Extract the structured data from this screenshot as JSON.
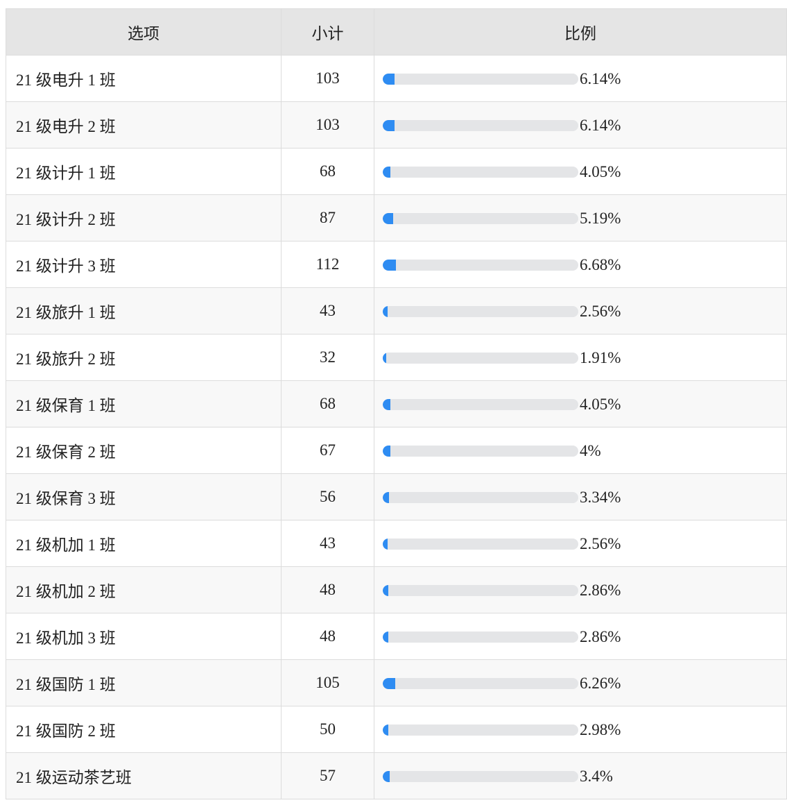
{
  "table": {
    "headers": [
      "选项",
      "小计",
      "比例"
    ],
    "rows": [
      {
        "option": "21 级电升 1 班",
        "count": "103",
        "ratio": 6.14,
        "ratio_label": "6.14%"
      },
      {
        "option": "21 级电升 2 班",
        "count": "103",
        "ratio": 6.14,
        "ratio_label": "6.14%"
      },
      {
        "option": "21 级计升 1 班",
        "count": "68",
        "ratio": 4.05,
        "ratio_label": "4.05%"
      },
      {
        "option": "21 级计升 2 班",
        "count": "87",
        "ratio": 5.19,
        "ratio_label": "5.19%"
      },
      {
        "option": "21 级计升 3 班",
        "count": "112",
        "ratio": 6.68,
        "ratio_label": "6.68%"
      },
      {
        "option": "21 级旅升 1 班",
        "count": "43",
        "ratio": 2.56,
        "ratio_label": "2.56%"
      },
      {
        "option": "21 级旅升 2 班",
        "count": "32",
        "ratio": 1.91,
        "ratio_label": "1.91%"
      },
      {
        "option": "21 级保育 1 班",
        "count": "68",
        "ratio": 4.05,
        "ratio_label": "4.05%"
      },
      {
        "option": "21 级保育 2 班",
        "count": "67",
        "ratio": 4,
        "ratio_label": "4%"
      },
      {
        "option": "21 级保育 3 班",
        "count": "56",
        "ratio": 3.34,
        "ratio_label": "3.34%"
      },
      {
        "option": "21 级机加 1 班",
        "count": "43",
        "ratio": 2.56,
        "ratio_label": "2.56%"
      },
      {
        "option": "21 级机加 2 班",
        "count": "48",
        "ratio": 2.86,
        "ratio_label": "2.86%"
      },
      {
        "option": "21 级机加 3 班",
        "count": "48",
        "ratio": 2.86,
        "ratio_label": "2.86%"
      },
      {
        "option": "21 级国防 1 班",
        "count": "105",
        "ratio": 6.26,
        "ratio_label": "6.26%"
      },
      {
        "option": "21 级国防 2 班",
        "count": "50",
        "ratio": 2.98,
        "ratio_label": "2.98%"
      },
      {
        "option": "21 级运动茶艺班",
        "count": "57",
        "ratio": 3.4,
        "ratio_label": "3.4%"
      }
    ]
  }
}
